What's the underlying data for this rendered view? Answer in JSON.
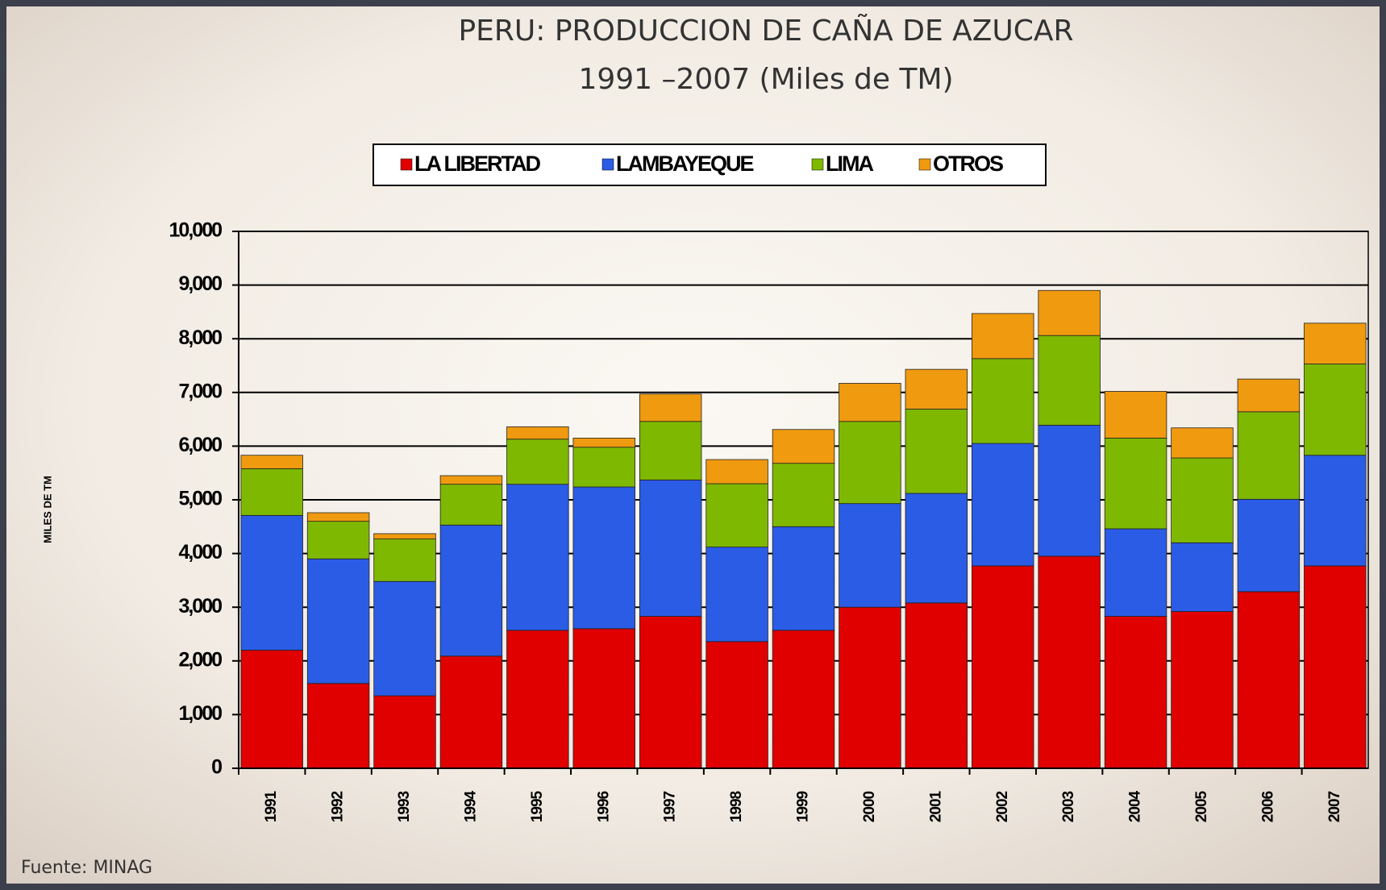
{
  "chart_data": {
    "type": "bar",
    "stacked": true,
    "title": "PERU: PRODUCCION DE CAÑA DE AZUCAR",
    "subtitle": "1991 –2007 (Miles de TM)",
    "y_label": "MILES DE TM",
    "source": "Fuente: MINAG",
    "categories": [
      "1991",
      "1992",
      "1993",
      "1994",
      "1995",
      "1996",
      "1997",
      "1998",
      "1999",
      "2000",
      "2001",
      "2002",
      "2003",
      "2004",
      "2005",
      "2006",
      "2007"
    ],
    "series": [
      {
        "name": "LA LIBERTAD",
        "color": "#e00000",
        "values": [
          2200,
          1580,
          1350,
          2090,
          2570,
          2600,
          2830,
          2360,
          2570,
          3000,
          3080,
          3770,
          3950,
          2830,
          2920,
          3290,
          3770
        ]
      },
      {
        "name": "LAMBAYEQUE",
        "color": "#2b5ce6",
        "values": [
          2510,
          2320,
          2130,
          2440,
          2720,
          2640,
          2540,
          1760,
          1930,
          1930,
          2040,
          2280,
          2440,
          1630,
          1280,
          1720,
          2060
        ]
      },
      {
        "name": "LIMA",
        "color": "#7fb800",
        "values": [
          870,
          700,
          790,
          760,
          840,
          740,
          1090,
          1180,
          1180,
          1530,
          1570,
          1580,
          1670,
          1690,
          1580,
          1630,
          1700
        ]
      },
      {
        "name": "OTROS",
        "color": "#f09a10",
        "values": [
          250,
          160,
          100,
          160,
          230,
          170,
          510,
          450,
          630,
          710,
          740,
          840,
          840,
          870,
          560,
          610,
          760
        ]
      }
    ],
    "ylim": [
      0,
      10000
    ],
    "yticks": [
      0,
      {
        "value": 1000,
        "label": "1,000"
      },
      {
        "value": 2000,
        "label": "2,000"
      },
      {
        "value": 3000,
        "label": "3,000"
      },
      {
        "value": 4000,
        "label": "4,000"
      },
      {
        "value": 5000,
        "label": "5,000"
      },
      {
        "value": 6000,
        "label": "6,000"
      },
      {
        "value": 7000,
        "label": "7,000"
      },
      {
        "value": 8000,
        "label": "8,000"
      },
      {
        "value": 9000,
        "label": "9,000"
      },
      {
        "value": 10000,
        "label": "10,000"
      }
    ],
    "grid": true,
    "legend": "top"
  }
}
